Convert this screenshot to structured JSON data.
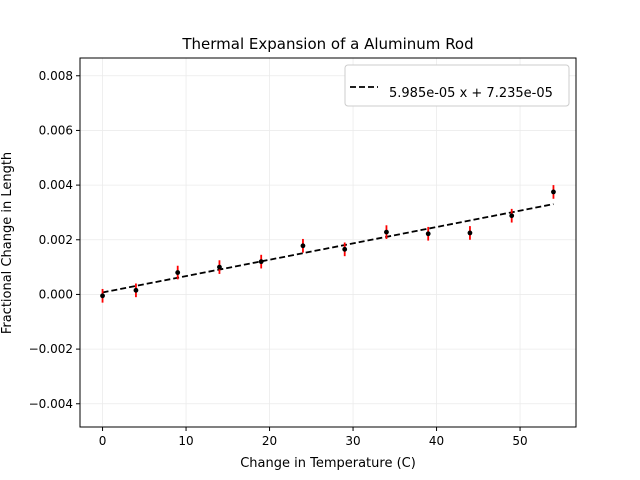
{
  "chart_data": {
    "type": "scatter",
    "title": "Thermal Expansion of a Aluminum Rod",
    "xlabel": "Change in Temperature (C)",
    "ylabel": "Fractional Change in Length",
    "xlim": [
      -2.7,
      56.7
    ],
    "ylim": [
      -0.00485,
      0.00865
    ],
    "x_ticks": [
      0,
      10,
      20,
      30,
      40,
      50
    ],
    "x_tick_labels": [
      "0",
      "10",
      "20",
      "30",
      "40",
      "50"
    ],
    "y_ticks": [
      -0.004,
      -0.002,
      0.0,
      0.002,
      0.004,
      0.006,
      0.008
    ],
    "y_tick_labels": [
      "−0.004",
      "−0.002",
      "0.000",
      "0.002",
      "0.004",
      "0.006",
      "0.008"
    ],
    "grid": true,
    "legend_position": "top-right",
    "series": [
      {
        "kind": "errorbar",
        "marker_color": "#000000",
        "error_color": "#ff0000",
        "x": [
          0,
          4,
          9,
          14,
          19,
          24,
          29,
          34,
          39,
          44,
          49,
          54
        ],
        "y": [
          -5e-05,
          0.00015,
          0.0008,
          0.001,
          0.0012,
          0.00178,
          0.00165,
          0.00228,
          0.00222,
          0.00225,
          0.00288,
          0.00375
        ],
        "yerr": [
          0.00025,
          0.00025,
          0.00025,
          0.00025,
          0.00025,
          0.00025,
          0.00025,
          0.00025,
          0.00025,
          0.00025,
          0.00025,
          0.00025
        ]
      },
      {
        "kind": "fit",
        "name": "5.985e-05 x + 7.235e-05",
        "slope": 5.985e-05,
        "intercept": 7.235e-05,
        "x_range": [
          0,
          54
        ],
        "color": "#000000",
        "dashed": true
      }
    ]
  }
}
